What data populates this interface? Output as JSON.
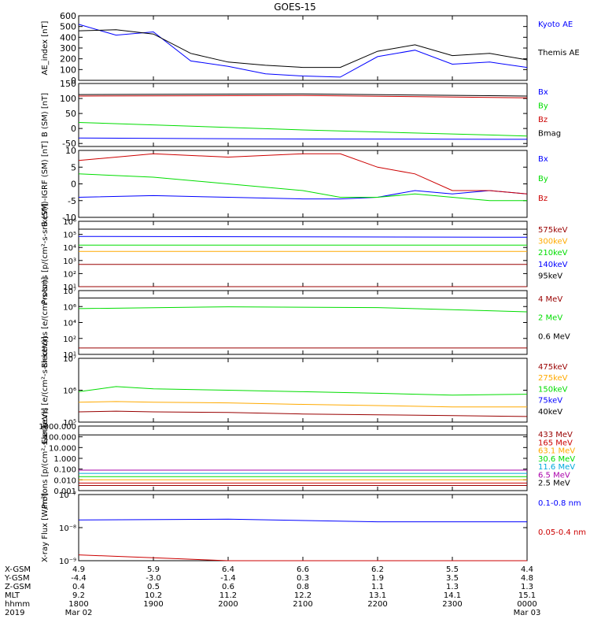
{
  "title": "GOES-15",
  "colors": {
    "black": "#000000",
    "blue": "#0000ff",
    "green": "#00dd00",
    "red": "#cc0000",
    "darkred": "#990000",
    "orange": "#ffaa00",
    "cyan": "#00aadd",
    "purple": "#aa00aa"
  },
  "chart_data": [
    {
      "type": "line",
      "id": "ae",
      "ylabel": "AE_index [nT]",
      "ylim": [
        0,
        600
      ],
      "yticks": [
        0,
        100,
        200,
        300,
        400,
        500,
        600
      ],
      "ytick_labels": [
        "0",
        "100",
        "200",
        "300",
        "400",
        "500",
        "600"
      ],
      "x_hours": [
        18.0,
        18.5,
        19.0,
        19.5,
        20.0,
        20.5,
        21.0,
        21.5,
        22.0,
        22.5,
        23.0,
        23.5,
        24.0
      ],
      "series": [
        {
          "name": "Kyoto AE",
          "color": "blue",
          "values": [
            520,
            420,
            450,
            180,
            130,
            60,
            40,
            30,
            220,
            280,
            150,
            170,
            120
          ]
        },
        {
          "name": "Themis AE",
          "color": "black",
          "values": [
            460,
            470,
            430,
            250,
            170,
            140,
            120,
            120,
            270,
            330,
            230,
            250,
            190
          ]
        }
      ]
    },
    {
      "type": "line",
      "id": "bsm",
      "ylabel": "B (SM) [nT]",
      "ylim": [
        -60,
        150
      ],
      "yticks": [
        -50,
        0,
        50,
        100,
        150
      ],
      "ytick_labels": [
        "-50",
        "0",
        "50",
        "100",
        "150"
      ],
      "x_hours": [
        18.0,
        21.0,
        24.0
      ],
      "series": [
        {
          "name": "Bx",
          "color": "blue",
          "values": [
            -32,
            -35,
            -36
          ]
        },
        {
          "name": "By",
          "color": "green",
          "values": [
            20,
            -5,
            -25
          ]
        },
        {
          "name": "Bz",
          "color": "red",
          "values": [
            108,
            110,
            102
          ]
        },
        {
          "name": "Bmag",
          "color": "black",
          "values": [
            113,
            115,
            108
          ]
        }
      ]
    },
    {
      "type": "line",
      "id": "bigrf",
      "ylabel": "B (SM)-IGRF (SM) [nT]",
      "ylim": [
        -10,
        10
      ],
      "yticks": [
        -10,
        -5,
        0,
        5,
        10
      ],
      "ytick_labels": [
        "-10",
        "-5",
        "0",
        "5",
        "10"
      ],
      "x_hours": [
        18.0,
        19.0,
        20.0,
        21.0,
        21.5,
        22.0,
        22.5,
        23.0,
        23.5,
        24.0
      ],
      "series": [
        {
          "name": "Bx",
          "color": "blue",
          "values": [
            -4,
            -3.5,
            -4,
            -4.5,
            -4.5,
            -4,
            -2,
            -3,
            -2,
            -3
          ]
        },
        {
          "name": "By",
          "color": "green",
          "values": [
            3,
            2,
            0,
            -2,
            -4,
            -4,
            -3,
            -4,
            -5,
            -5
          ]
        },
        {
          "name": "Bz",
          "color": "red",
          "values": [
            7,
            9,
            8,
            9,
            9,
            5,
            3,
            -2,
            -2,
            -3
          ]
        }
      ]
    },
    {
      "type": "line",
      "id": "protons_kev",
      "ylabel": "Protons [p/(cm²-s-sr-keV)]",
      "log": true,
      "ylim": [
        10,
        1000000
      ],
      "ytick_labels": [
        "10¹",
        "10²",
        "10³",
        "10⁴",
        "10⁵",
        "10⁶"
      ],
      "x_hours": [
        18.0,
        21.0,
        24.0
      ],
      "series": [
        {
          "name": "575keV",
          "color": "darkred",
          "values": [
            2.5,
            2.5,
            2.5
          ]
        },
        {
          "name": "300keV",
          "color": "orange",
          "values": [
            5000,
            5000,
            5000
          ]
        },
        {
          "name": "210keV",
          "color": "green",
          "values": [
            15000,
            15000,
            15000
          ]
        },
        {
          "name": "140keV",
          "color": "blue",
          "values": [
            70000,
            65000,
            60000
          ]
        },
        {
          "name": "95keV",
          "color": "black",
          "values": [
            250000,
            250000,
            250000
          ]
        }
      ],
      "extra_line": {
        "color": "darkred",
        "value": 500
      }
    },
    {
      "type": "line",
      "id": "electrons_mev",
      "ylabel": "Electrons [e/(cm²-s-sr)]",
      "log": true,
      "ylim": [
        10,
        10000000
      ],
      "ytick_labels": [
        "10¹",
        "10²",
        "10⁴",
        "10⁶",
        "10⁷"
      ],
      "x_hours": [
        18.0,
        20.0,
        22.0,
        24.0
      ],
      "series": [
        {
          "name": "4 MeV",
          "color": "darkred",
          "values": [
            40,
            40,
            40,
            40
          ]
        },
        {
          "name": "2 MeV",
          "color": "green",
          "values": [
            200000,
            300000,
            250000,
            100000
          ]
        },
        {
          "name": "0.6 MeV",
          "color": "black",
          "values": [
            2000000,
            2000000,
            2000000,
            2000000
          ]
        }
      ]
    },
    {
      "type": "line",
      "id": "electrons_kev",
      "ylabel": "Electrons [e/(cm²-s-sr-keV)]",
      "log": true,
      "ylim": [
        100000,
        10000000
      ],
      "ytick_labels": [
        "10⁵",
        "10⁶",
        "10⁷"
      ],
      "x_hours": [
        18.0,
        18.5,
        19.0,
        20.0,
        21.0,
        22.0,
        23.0,
        24.0
      ],
      "series": [
        {
          "name": "475keV",
          "color": "darkred",
          "values": [
            210000,
            220000,
            210000,
            200000,
            180000,
            170000,
            160000,
            150000
          ]
        },
        {
          "name": "275keV",
          "color": "orange",
          "values": [
            420000,
            440000,
            420000,
            400000,
            360000,
            330000,
            300000,
            300000
          ]
        },
        {
          "name": "150keV",
          "color": "green",
          "values": [
            900000,
            1300000,
            1100000,
            1000000,
            900000,
            800000,
            700000,
            750000
          ]
        },
        {
          "name": "75keV",
          "color": "blue",
          "values": [
            0,
            0,
            0,
            0,
            0,
            0,
            0,
            0
          ]
        },
        {
          "name": "40keV",
          "color": "black",
          "values": [
            0,
            0,
            0,
            0,
            0,
            0,
            0,
            0
          ]
        }
      ]
    },
    {
      "type": "line",
      "id": "protons_mev",
      "ylabel": "Protons [p/(cm²-s-sr-keV)]",
      "log": true,
      "ylim": [
        0.001,
        1000
      ],
      "ytick_labels": [
        "0.001",
        "0.010",
        "0.100",
        "1.000",
        "10.000",
        "100.000",
        "1000.000"
      ],
      "x_hours": [
        18.0,
        24.0
      ],
      "series": [
        {
          "name": "433 MeV",
          "color": "darkred",
          "values": [
            0.003,
            0.003
          ]
        },
        {
          "name": "165 MeV",
          "color": "red",
          "values": [
            0.005,
            0.005
          ]
        },
        {
          "name": "63.1 MeV",
          "color": "orange",
          "values": [
            0.01,
            0.01
          ]
        },
        {
          "name": "30.6 MeV",
          "color": "green",
          "values": [
            0.02,
            0.02
          ]
        },
        {
          "name": "11.6 MeV",
          "color": "cyan",
          "values": [
            0.04,
            0.04
          ]
        },
        {
          "name": "6.5 MeV",
          "color": "purple",
          "values": [
            0.08,
            0.08
          ]
        },
        {
          "name": "2.5 MeV",
          "color": "black",
          "values": [
            150,
            150
          ]
        }
      ]
    },
    {
      "type": "line",
      "id": "xray",
      "ylabel": "X-ray Flux [W/m²]",
      "log": true,
      "ylim": [
        1e-09,
        1e-07
      ],
      "ytick_labels": [
        "10⁻⁹",
        "10⁻⁸",
        "10⁻⁷"
      ],
      "x_hours": [
        18.0,
        20.0,
        22.0,
        24.0
      ],
      "series": [
        {
          "name": "0.1-0.8 nm",
          "color": "blue",
          "values": [
            1.7e-08,
            1.8e-08,
            1.5e-08,
            1.5e-08
          ]
        },
        {
          "name": "0.05-0.4 nm",
          "color": "red",
          "values": [
            1.5e-09,
            1e-09,
            1e-09,
            1e-09
          ]
        }
      ]
    }
  ],
  "xaxis": {
    "row_labels": [
      "X-GSM",
      "Y-GSM",
      "Z-GSM",
      "MLT",
      "hhmm",
      "2019"
    ],
    "columns": [
      {
        "values": [
          "4.9",
          "-4.4",
          "0.4",
          "9.2",
          "1800",
          "Mar 02"
        ]
      },
      {
        "values": [
          "5.9",
          "-3.0",
          "0.5",
          "10.2",
          "1900",
          ""
        ]
      },
      {
        "values": [
          "6.4",
          "-1.4",
          "0.6",
          "11.2",
          "2000",
          ""
        ]
      },
      {
        "values": [
          "6.6",
          "0.3",
          "0.8",
          "12.2",
          "2100",
          ""
        ]
      },
      {
        "values": [
          "6.2",
          "1.9",
          "1.1",
          "13.1",
          "2200",
          ""
        ]
      },
      {
        "values": [
          "5.5",
          "3.5",
          "1.3",
          "14.1",
          "2300",
          ""
        ]
      },
      {
        "values": [
          "4.4",
          "4.8",
          "1.3",
          "15.1",
          "0000",
          "Mar 03"
        ]
      }
    ]
  }
}
